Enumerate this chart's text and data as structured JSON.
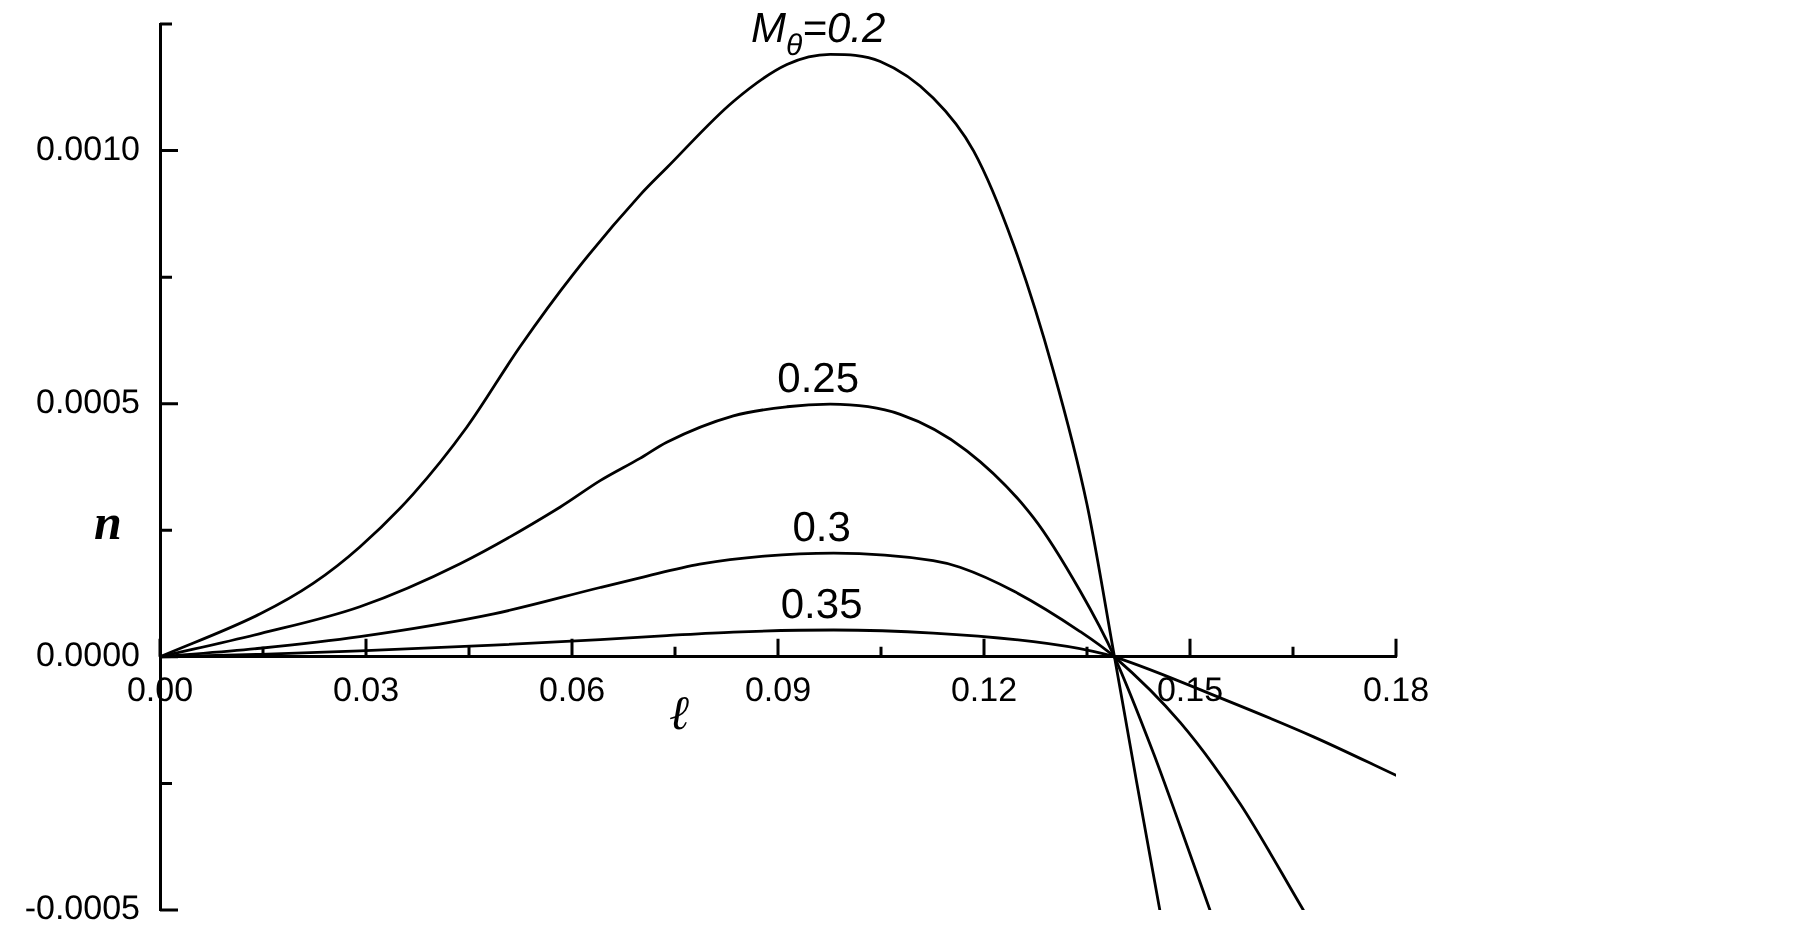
{
  "chart_data": {
    "type": "line",
    "xlabel": "ℓ",
    "ylabel": "n",
    "xlim": [
      0,
      0.18
    ],
    "ylim": [
      -0.0005,
      0.00125
    ],
    "xticks": [
      {
        "value": 0,
        "label": "0.00"
      },
      {
        "value": 0.015,
        "label": null
      },
      0.03,
      {
        "value": 0.045,
        "label": null
      },
      0.06,
      {
        "value": 0.075,
        "label": null
      },
      0.09,
      {
        "value": 0.105,
        "label": null
      },
      0.12,
      {
        "value": 0.135,
        "label": null
      },
      0.15,
      {
        "value": 0.165,
        "label": null
      },
      0.18
    ],
    "yticks": [
      -0.0005,
      {
        "value": -0.00025,
        "label": null
      },
      {
        "value": 0,
        "label": "0.0000"
      },
      {
        "value": 0.00025,
        "label": null
      },
      0.0005,
      {
        "value": 0.00075,
        "label": null
      },
      {
        "value": 0.001,
        "label": "0.0010"
      },
      {
        "value": 0.00125,
        "label": null
      }
    ],
    "marker": "none",
    "line_style": "solid",
    "series": [
      {
        "name": "M$_{θ}$=0.2",
        "color": "#000000",
        "x": [
          0,
          0.0146,
          0.0223,
          0.0291,
          0.0369,
          0.0447,
          0.0524,
          0.0602,
          0.0699,
          0.0738,
          0.0835,
          0.0913,
          0.0976,
          0.1049,
          0.1126,
          0.1185,
          0.1243,
          0.1301,
          0.135,
          0.139,
          0.1422,
          0.1456
        ],
        "values": [
          0,
          8.5e-05,
          0.000145,
          0.000217,
          0.000322,
          0.000454,
          0.000612,
          0.000756,
          0.000912,
          0.000966,
          0.001097,
          0.00117,
          0.00119,
          0.001176,
          0.001104,
          0.000999,
          0.000814,
          0.000565,
          0.000301,
          0,
          -0.000245,
          -0.0005
        ]
      },
      {
        "name": "0.25",
        "color": "#000000",
        "x": [
          0,
          0.0146,
          0.0291,
          0.0437,
          0.0583,
          0.0641,
          0.0699,
          0.0738,
          0.0835,
          0.0913,
          0.0976,
          0.1078,
          0.1175,
          0.1272,
          0.134,
          0.139,
          0.1447,
          0.1486,
          0.1529
        ],
        "values": [
          0,
          4.6e-05,
          9.9e-05,
          0.000184,
          0.000296,
          0.000348,
          0.000392,
          0.000424,
          0.000476,
          0.000494,
          0.000499,
          0.000479,
          0.000407,
          0.000275,
          0.00013,
          0,
          -0.000191,
          -0.000336,
          -0.0005
        ]
      },
      {
        "name": "0.3",
        "color": "#000000",
        "x": [
          0,
          0.0146,
          0.0291,
          0.0486,
          0.0641,
          0.0699,
          0.0786,
          0.088,
          0.0981,
          0.1126,
          0.1165,
          0.1243,
          0.134,
          0.139,
          0.1486,
          0.1573,
          0.1665
        ],
        "values": [
          0,
          1.7e-05,
          4e-05,
          8.5e-05,
          0.000137,
          0.000156,
          0.000183,
          0.000199,
          0.000205,
          0.00019,
          0.000177,
          0.00013,
          5e-05,
          0,
          -0.00013,
          -0.00029,
          -0.0005
        ]
      },
      {
        "name": "0.35",
        "color": "#000000",
        "x": [
          0,
          0.0146,
          0.0291,
          0.0486,
          0.0641,
          0.0738,
          0.0835,
          0.0981,
          0.1126,
          0.1272,
          0.1359,
          0.139,
          0.1553,
          0.168,
          0.18
        ],
        "values": [
          0,
          5e-06,
          1.2e-05,
          2.3e-05,
          3.4e-05,
          4.2e-05,
          4.9e-05,
          5.3e-05,
          4.7e-05,
          3e-05,
          1.1e-05,
          0,
          -8.6e-05,
          -0.000158,
          -0.000234
        ]
      }
    ]
  }
}
